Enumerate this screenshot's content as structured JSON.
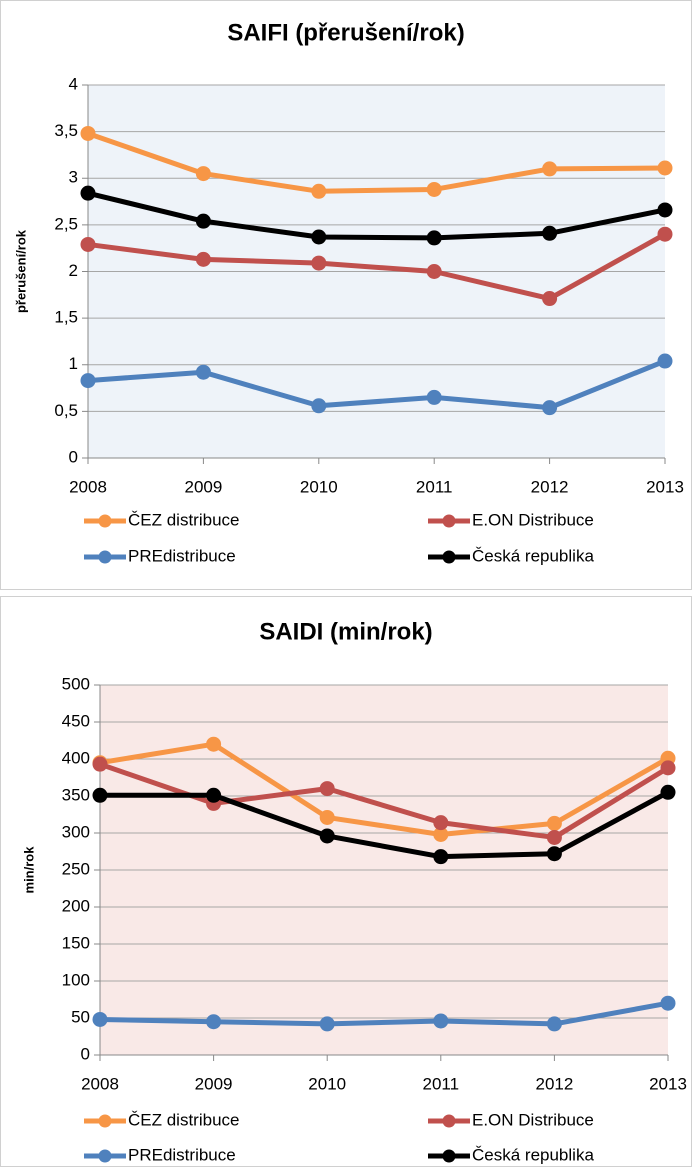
{
  "chart_data": [
    {
      "type": "line",
      "title": "SAIFI (přerušení/rok)",
      "y_label": "přerušení/rok",
      "categories": [
        "2008",
        "2009",
        "2010",
        "2011",
        "2012",
        "2013"
      ],
      "series": [
        {
          "name": "ČEZ distribuce",
          "color": "#f79646",
          "values": [
            3.48,
            3.05,
            2.86,
            2.88,
            3.1,
            3.11
          ]
        },
        {
          "name": "E.ON Distribuce",
          "color": "#c0504d",
          "values": [
            2.29,
            2.13,
            2.09,
            2.0,
            1.71,
            2.4
          ]
        },
        {
          "name": "PREdistribuce",
          "color": "#4f81bd",
          "values": [
            0.83,
            0.92,
            0.56,
            0.65,
            0.54,
            1.04
          ]
        },
        {
          "name": "Česká republika",
          "color": "#000000",
          "values": [
            2.84,
            2.54,
            2.37,
            2.36,
            2.41,
            2.66
          ]
        }
      ],
      "ylim": [
        0,
        4
      ],
      "yticks": [
        0,
        {
          "value": 0.5,
          "label": "0,5"
        },
        1,
        {
          "value": 1.5,
          "label": "1,5"
        },
        2,
        {
          "value": 2.5,
          "label": "2,5"
        },
        3,
        {
          "value": 3.5,
          "label": "3,5"
        },
        4
      ],
      "grid": true,
      "background": "#eef3f9"
    },
    {
      "type": "line",
      "title": "SAIDI (min/rok)",
      "y_label": "min/rok",
      "categories": [
        "2008",
        "2009",
        "2010",
        "2011",
        "2012",
        "2013"
      ],
      "series": [
        {
          "name": "ČEZ distribuce",
          "color": "#f79646",
          "values": [
            395,
            420,
            321,
            298,
            313,
            401
          ]
        },
        {
          "name": "E.ON Distribuce",
          "color": "#c0504d",
          "values": [
            393,
            340,
            360,
            314,
            294,
            388
          ]
        },
        {
          "name": "PREdistribuce",
          "color": "#4f81bd",
          "values": [
            48,
            45,
            42,
            46,
            42,
            70
          ]
        },
        {
          "name": "Česká republika",
          "color": "#000000",
          "values": [
            351,
            351,
            296,
            268,
            272,
            355
          ]
        }
      ],
      "ylim": [
        0,
        500
      ],
      "yticks": [
        0,
        50,
        100,
        150,
        200,
        250,
        300,
        350,
        400,
        450,
        500
      ],
      "grid": true,
      "background": "#f9e9e7"
    }
  ]
}
